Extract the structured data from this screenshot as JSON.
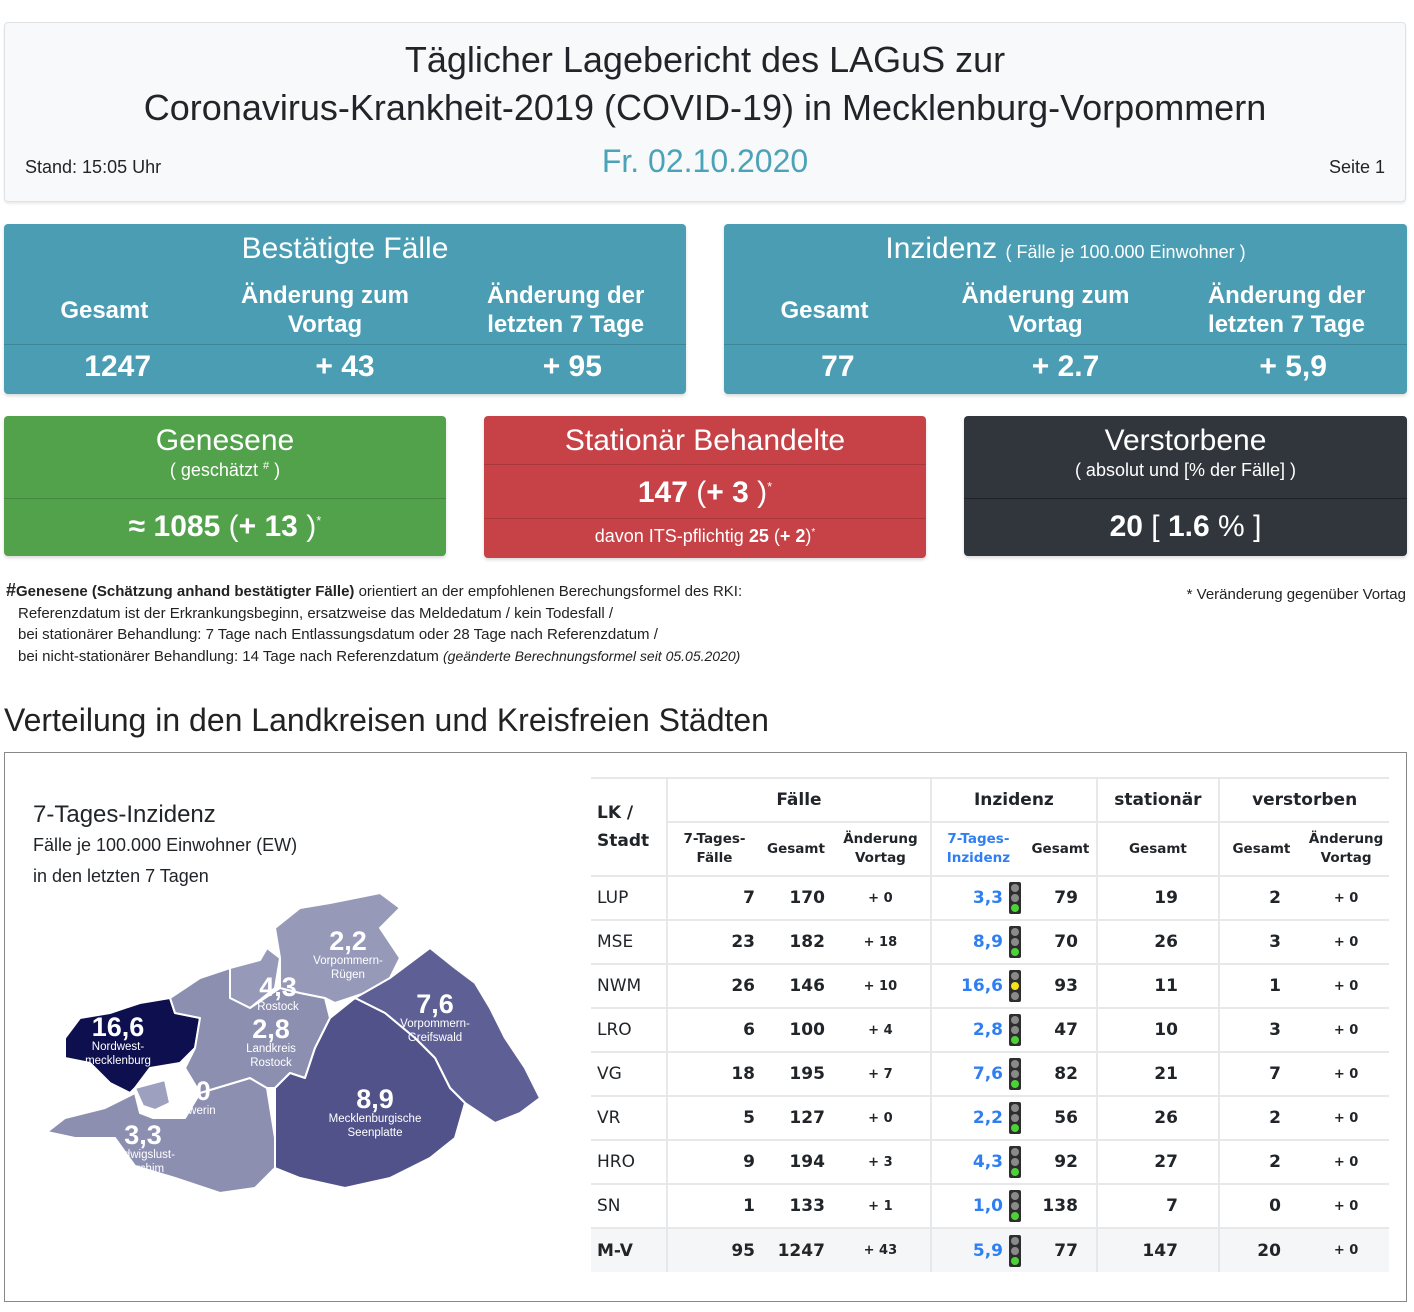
{
  "header": {
    "title_line1": "Täglicher Lagebericht des LAGuS zur",
    "title_line2": "Coronavirus-Krankheit-2019 (COVID-19) in Mecklenburg-Vorpommern",
    "stand": "Stand: 15:05 Uhr",
    "date": "Fr. 02.10.2020",
    "page": "Seite 1"
  },
  "confirmed": {
    "title": "Bestätigte Fälle",
    "col_labels": [
      "Gesamt",
      "Änderung zum Vortag",
      "Änderung der letzten 7 Tage"
    ],
    "values": [
      "1247",
      "+ 43",
      "+ 95"
    ]
  },
  "incidence": {
    "title": "Inzidenz",
    "subtitle": "( Fälle je 100.000 Einwohner )",
    "col_labels": [
      "Gesamt",
      "Änderung zum Vortag",
      "Änderung der letzten 7 Tage"
    ],
    "values": [
      "77",
      "+ 2.7",
      "+ 5,9"
    ]
  },
  "recovered": {
    "title": "Genesene",
    "subtitle_pre": "( geschätzt ",
    "subtitle_mark": "#",
    "subtitle_post": " )",
    "approx": "≈",
    "value": "1085",
    "change": "+ 13",
    "star": "*"
  },
  "hospitalized": {
    "title": "Stationär Behandelte",
    "value": "147",
    "change": "+ 3",
    "star": "*",
    "its_label": "davon ITS-pflichtig",
    "its_value": "25",
    "its_change": "+ 2"
  },
  "deceased": {
    "title": "Verstorbene",
    "subtitle": "( absolut und [% der Fälle] )",
    "value": "20",
    "percent": "1.6",
    "percent_sign": "%"
  },
  "footnote": {
    "hash": "#",
    "bold": "Genesene (Schätzung anhand bestätigter Fälle)",
    "line1_rest": " orientiert an der empfohlenen Berechungsformel des RKI:",
    "line2": "Referenzdatum ist der Erkrankungsbeginn, ersatzweise das Meldedatum / kein Todesfall /",
    "line3": "bei stationärer Behandlung: 7 Tage nach Entlassungsdatum oder 28 Tage nach Referenzdatum /",
    "line4": "bei nicht-stationärer Behandlung: 14 Tage nach Referenzdatum ",
    "line4_italic": "(geänderte Berechnungsformel seit 05.05.2020)",
    "star_note": "* Veränderung gegenüber Vortag"
  },
  "section_title": "Verteilung in den Landkreisen und Kreisfreien Städten",
  "map": {
    "title": "7-Tages-Inzidenz",
    "subtitle1": "Fälle je 100.000 Einwohner (EW)",
    "subtitle2": "in den letzten 7 Tagen",
    "regions": [
      {
        "id": "nwm",
        "value": "16,6",
        "name1": "Nordwest-",
        "name2": "mecklenburg",
        "color": "#0e0f4f"
      },
      {
        "id": "vr",
        "value": "2,2",
        "name1": "Vorpommern-",
        "name2": "Rügen",
        "color": "#9799b9"
      },
      {
        "id": "hro",
        "value": "4,3",
        "name1": "Rostock",
        "name2": "",
        "color": "#9799b9"
      },
      {
        "id": "lro",
        "value": "2,8",
        "name1": "Landkreis",
        "name2": "Rostock",
        "color": "#8d8fb1"
      },
      {
        "id": "vg",
        "value": "7,6",
        "name1": "Vorpommern-",
        "name2": "Greifswald",
        "color": "#5e5f95"
      },
      {
        "id": "sn",
        "value": "1,0",
        "name1": "Schwerin",
        "name2": "",
        "color": "#9da0bf"
      },
      {
        "id": "lup",
        "value": "3,3",
        "name1": "Ludwigslust-",
        "name2": "Parchim",
        "color": "#8d8fb1"
      },
      {
        "id": "mse",
        "value": "8,9",
        "name1": "Mecklenburgische",
        "name2": "Seenplatte",
        "color": "#515289"
      }
    ]
  },
  "table": {
    "group_headers": {
      "lk": "LK / Stadt",
      "faelle": "Fälle",
      "inzidenz": "Inzidenz",
      "stationaer": "stationär",
      "verstorben": "verstorben"
    },
    "sub_headers": {
      "f7": "7-Tages- Fälle",
      "fges": "Gesamt",
      "fchg": "Änderung Vortag",
      "i7": "7-Tages- Inzidenz",
      "iges": "Gesamt",
      "sges": "Gesamt",
      "vges": "Gesamt",
      "vchg": "Änderung Vortag"
    },
    "rows": [
      {
        "lk": "LUP",
        "f7": "7",
        "fges": "170",
        "fchg": "+ 0",
        "i7": "3,3",
        "light": "green",
        "iges": "79",
        "sges": "19",
        "vges": "2",
        "vchg": "+ 0"
      },
      {
        "lk": "MSE",
        "f7": "23",
        "fges": "182",
        "fchg": "+ 18",
        "i7": "8,9",
        "light": "green",
        "iges": "70",
        "sges": "26",
        "vges": "3",
        "vchg": "+ 0"
      },
      {
        "lk": "NWM",
        "f7": "26",
        "fges": "146",
        "fchg": "+ 10",
        "i7": "16,6",
        "light": "yellow",
        "iges": "93",
        "sges": "11",
        "vges": "1",
        "vchg": "+ 0"
      },
      {
        "lk": "LRO",
        "f7": "6",
        "fges": "100",
        "fchg": "+ 4",
        "i7": "2,8",
        "light": "green",
        "iges": "47",
        "sges": "10",
        "vges": "3",
        "vchg": "+ 0"
      },
      {
        "lk": "VG",
        "f7": "18",
        "fges": "195",
        "fchg": "+ 7",
        "i7": "7,6",
        "light": "green",
        "iges": "82",
        "sges": "21",
        "vges": "7",
        "vchg": "+ 0"
      },
      {
        "lk": "VR",
        "f7": "5",
        "fges": "127",
        "fchg": "+ 0",
        "i7": "2,2",
        "light": "green",
        "iges": "56",
        "sges": "26",
        "vges": "2",
        "vchg": "+ 0"
      },
      {
        "lk": "HRO",
        "f7": "9",
        "fges": "194",
        "fchg": "+ 3",
        "i7": "4,3",
        "light": "green",
        "iges": "92",
        "sges": "27",
        "vges": "2",
        "vchg": "+ 0"
      },
      {
        "lk": "SN",
        "f7": "1",
        "fges": "133",
        "fchg": "+ 1",
        "i7": "1,0",
        "light": "green",
        "iges": "138",
        "sges": "7",
        "vges": "0",
        "vchg": "+ 0"
      },
      {
        "lk": "M-V",
        "f7": "95",
        "fges": "1247",
        "fchg": "+ 43",
        "i7": "5,9",
        "light": "green",
        "iges": "77",
        "sges": "147",
        "vges": "20",
        "vchg": "+ 0",
        "total": true
      }
    ]
  },
  "colors": {
    "teal": "#4a9db3",
    "green": "#52a14b",
    "red": "#c74247",
    "dark": "#31363c",
    "link_blue": "#2f7ff2",
    "light_green": "#4cd137",
    "light_yellow": "#f5e11a"
  }
}
